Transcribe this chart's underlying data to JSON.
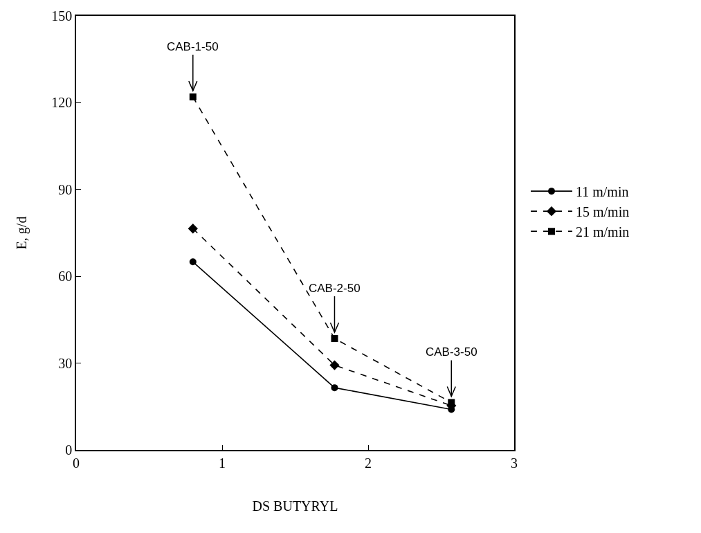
{
  "chart_data": {
    "type": "line",
    "xlabel": "DS BUTYRYL",
    "ylabel": "E, g/d",
    "xlim": [
      0,
      3
    ],
    "xticks": [
      0,
      1,
      2,
      3
    ],
    "ylim": [
      0,
      150
    ],
    "yticks": [
      0,
      30,
      60,
      90,
      120,
      150
    ],
    "x": [
      0.8,
      1.77,
      2.57
    ],
    "series": [
      {
        "name": "11 m/min",
        "color": "#000000",
        "marker": "circle",
        "line_style": "solid",
        "values": [
          65,
          21.5,
          14
        ]
      },
      {
        "name": "15 m/min",
        "color": "#000000",
        "marker": "diamond",
        "line_style": "dashed",
        "values": [
          76.5,
          29.3,
          15.3
        ]
      },
      {
        "name": "21 m/min",
        "color": "#000000",
        "marker": "square",
        "line_style": "dashed",
        "values": [
          122,
          38.5,
          16.4
        ]
      }
    ],
    "annotations": [
      {
        "text": "CAB-1-50",
        "x": 0.8,
        "y": 122
      },
      {
        "text": "CAB-2-50",
        "x": 1.77,
        "y": 38.5
      },
      {
        "text": "CAB-3-50",
        "x": 2.57,
        "y": 16.4
      }
    ],
    "legend": "right"
  }
}
